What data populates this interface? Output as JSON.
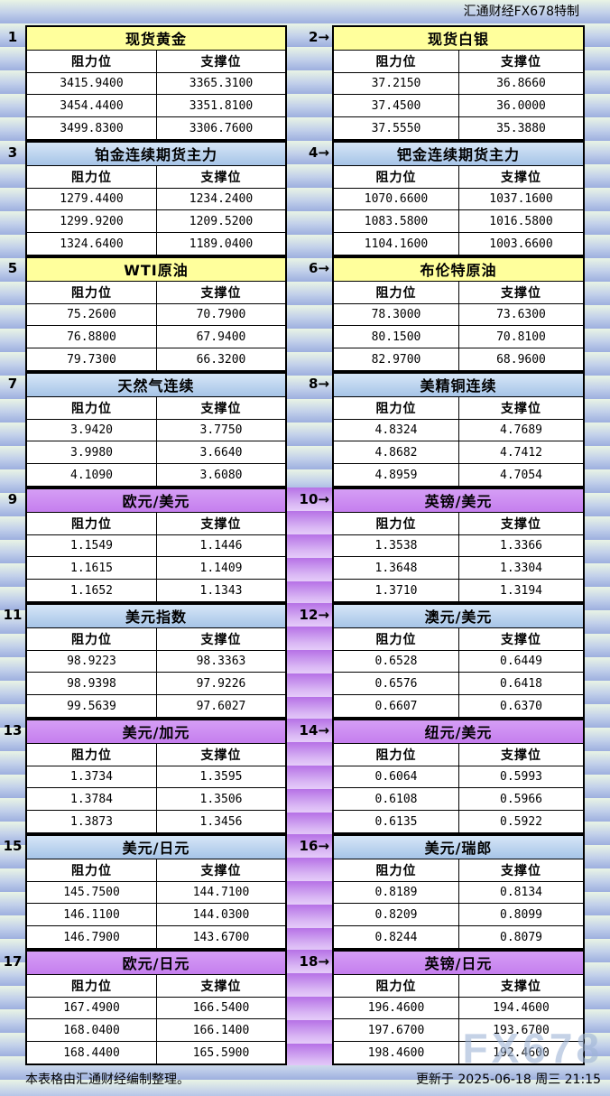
{
  "header": {
    "brand": "汇通财经FX678特制"
  },
  "column_headers": {
    "resistance": "阻力位",
    "support": "支撑位"
  },
  "tables": [
    {
      "label": "1",
      "title": "现货黄金",
      "theme": "yellow",
      "rows": [
        [
          "3415.9400",
          "3365.3100"
        ],
        [
          "3454.4400",
          "3351.8100"
        ],
        [
          "3499.8300",
          "3306.7600"
        ]
      ]
    },
    {
      "label": "2→",
      "title": "现货白银",
      "theme": "yellow",
      "rows": [
        [
          "37.2150",
          "36.8660"
        ],
        [
          "37.4500",
          "36.0000"
        ],
        [
          "37.5550",
          "35.3880"
        ]
      ]
    },
    {
      "label": "3",
      "title": "铂金连续期货主力",
      "theme": "blue",
      "rows": [
        [
          "1279.4400",
          "1234.2400"
        ],
        [
          "1299.9200",
          "1209.5200"
        ],
        [
          "1324.6400",
          "1189.0400"
        ]
      ]
    },
    {
      "label": "4→",
      "title": "钯金连续期货主力",
      "theme": "blue",
      "rows": [
        [
          "1070.6600",
          "1037.1600"
        ],
        [
          "1083.5800",
          "1016.5800"
        ],
        [
          "1104.1600",
          "1003.6600"
        ]
      ]
    },
    {
      "label": "5",
      "title": "WTI原油",
      "theme": "yellow",
      "rows": [
        [
          "75.2600",
          "70.7900"
        ],
        [
          "76.8800",
          "67.9400"
        ],
        [
          "79.7300",
          "66.3200"
        ]
      ]
    },
    {
      "label": "6→",
      "title": "布伦特原油",
      "theme": "yellow",
      "rows": [
        [
          "78.3000",
          "73.6300"
        ],
        [
          "80.1500",
          "70.8100"
        ],
        [
          "82.9700",
          "68.9600"
        ]
      ]
    },
    {
      "label": "7",
      "title": "天然气连续",
      "theme": "blue",
      "rows": [
        [
          "3.9420",
          "3.7750"
        ],
        [
          "3.9980",
          "3.6640"
        ],
        [
          "4.1090",
          "3.6080"
        ]
      ]
    },
    {
      "label": "8→",
      "title": "美精铜连续",
      "theme": "blue",
      "rows": [
        [
          "4.8324",
          "4.7689"
        ],
        [
          "4.8682",
          "4.7412"
        ],
        [
          "4.8959",
          "4.7054"
        ]
      ]
    },
    {
      "label": "9",
      "title": "欧元/美元",
      "theme": "purple",
      "rows": [
        [
          "1.1549",
          "1.1446"
        ],
        [
          "1.1615",
          "1.1409"
        ],
        [
          "1.1652",
          "1.1343"
        ]
      ]
    },
    {
      "label": "10→",
      "title": "英镑/美元",
      "theme": "purple",
      "rows": [
        [
          "1.3538",
          "1.3366"
        ],
        [
          "1.3648",
          "1.3304"
        ],
        [
          "1.3710",
          "1.3194"
        ]
      ]
    },
    {
      "label": "11",
      "title": "美元指数",
      "theme": "blue",
      "rows": [
        [
          "98.9223",
          "98.3363"
        ],
        [
          "98.9398",
          "97.9226"
        ],
        [
          "99.5639",
          "97.6027"
        ]
      ]
    },
    {
      "label": "12→",
      "title": "澳元/美元",
      "theme": "blue",
      "rows": [
        [
          "0.6528",
          "0.6449"
        ],
        [
          "0.6576",
          "0.6418"
        ],
        [
          "0.6607",
          "0.6370"
        ]
      ]
    },
    {
      "label": "13",
      "title": "美元/加元",
      "theme": "purple",
      "rows": [
        [
          "1.3734",
          "1.3595"
        ],
        [
          "1.3784",
          "1.3506"
        ],
        [
          "1.3873",
          "1.3456"
        ]
      ]
    },
    {
      "label": "14→",
      "title": "纽元/美元",
      "theme": "purple",
      "rows": [
        [
          "0.6064",
          "0.5993"
        ],
        [
          "0.6108",
          "0.5966"
        ],
        [
          "0.6135",
          "0.5922"
        ]
      ]
    },
    {
      "label": "15",
      "title": "美元/日元",
      "theme": "blue",
      "rows": [
        [
          "145.7500",
          "144.7100"
        ],
        [
          "146.1100",
          "144.0300"
        ],
        [
          "146.7900",
          "143.6700"
        ]
      ]
    },
    {
      "label": "16→",
      "title": "美元/瑞郎",
      "theme": "blue",
      "rows": [
        [
          "0.8189",
          "0.8134"
        ],
        [
          "0.8209",
          "0.8099"
        ],
        [
          "0.8244",
          "0.8079"
        ]
      ]
    },
    {
      "label": "17",
      "title": "欧元/日元",
      "theme": "purple",
      "rows": [
        [
          "167.4900",
          "166.5400"
        ],
        [
          "168.0400",
          "166.1400"
        ],
        [
          "168.4400",
          "165.5900"
        ]
      ]
    },
    {
      "label": "18→",
      "title": "英镑/日元",
      "theme": "purple",
      "rows": [
        [
          "196.4600",
          "194.4600"
        ],
        [
          "197.6700",
          "193.6700"
        ],
        [
          "198.4600",
          "192.4600"
        ]
      ]
    }
  ],
  "footer": {
    "source_note": "本表格由汇通财经编制整理。",
    "updated": "更新于 2025-06-18 周三 21:15"
  },
  "watermark": "FX678",
  "colors": {
    "title_yellow": "#ffff9c",
    "title_blue": "#a6c4e7",
    "title_purple": "#c57eee",
    "stripe_green": "#e9f4e5",
    "stripe_blue": "#9dafdf",
    "gutter_purple": "#b671e6"
  }
}
